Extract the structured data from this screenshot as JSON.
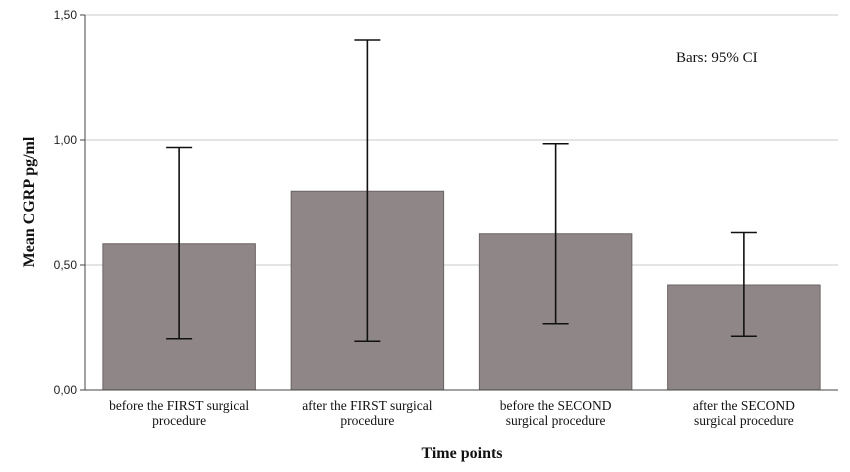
{
  "chart_data": {
    "type": "bar",
    "categories": [
      [
        "before the FIRST surgical",
        "procedure"
      ],
      [
        "after the FIRST surgical",
        "procedure"
      ],
      [
        "before the SECOND",
        "surgical procedure"
      ],
      [
        "after the SECOND",
        "surgical procedure"
      ]
    ],
    "values": [
      0.585,
      0.795,
      0.625,
      0.42
    ],
    "error_bars": {
      "type": "95% CI",
      "lower": [
        0.205,
        0.195,
        0.265,
        0.215
      ],
      "upper": [
        0.97,
        1.4,
        0.985,
        0.63
      ]
    },
    "xlabel": "Time points",
    "ylabel": "Mean CGRP pg/ml",
    "ylim": [
      0,
      1.5
    ],
    "yticks": [
      0,
      0.5,
      1.0,
      1.5
    ],
    "ytick_labels": [
      "0,00",
      "0,50",
      "1,00",
      "1,50"
    ],
    "grid": true,
    "annotation": "Bars: 95% CI",
    "colors": {
      "bar": "#8f8787",
      "bar_edge": "#6b6464",
      "grid": "#c8c8c8",
      "error": "#111111"
    }
  }
}
